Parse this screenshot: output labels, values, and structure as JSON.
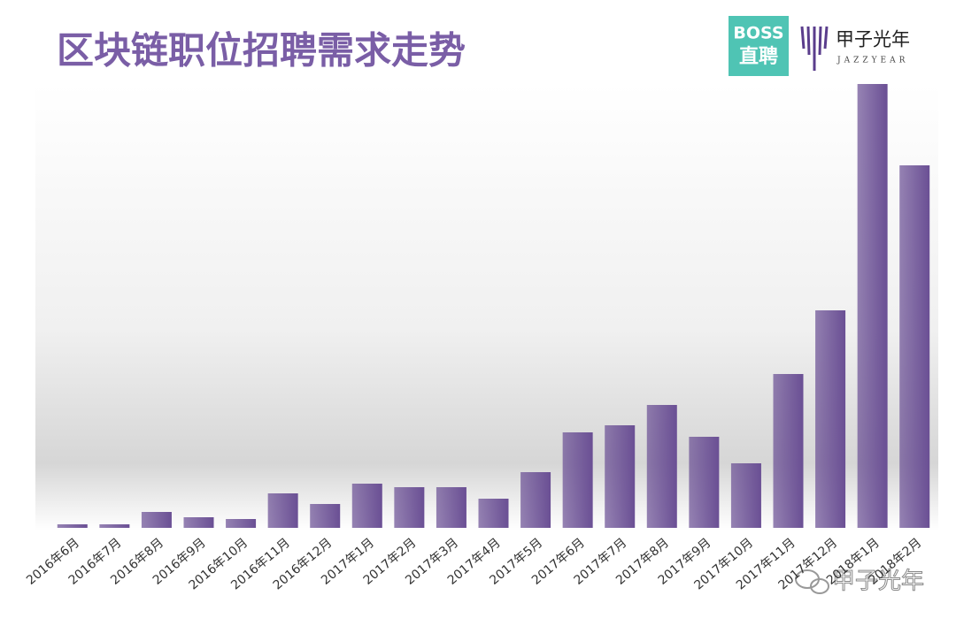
{
  "title": "区块链职位招聘需求走势",
  "logos": {
    "boss_top": "BOSS",
    "boss_bottom": "直聘",
    "jazzyear_cn": "甲子光年",
    "jazzyear_en": "JAZZYEAR"
  },
  "watermark": "甲子光年",
  "chart_data": {
    "type": "bar",
    "categories": [
      "2016年6月",
      "2016年7月",
      "2016年8月",
      "2016年9月",
      "2016年10月",
      "2016年11月",
      "2016年12月",
      "2017年1月",
      "2017年2月",
      "2017年3月",
      "2017年4月",
      "2017年5月",
      "2017年6月",
      "2017年7月",
      "2017年8月",
      "2017年9月",
      "2017年10月",
      "2017年11月",
      "2017年12月",
      "2018年1月",
      "2018年2月"
    ],
    "values": [
      4,
      4,
      18,
      12,
      10,
      39,
      27,
      50,
      46,
      46,
      33,
      63,
      108,
      116,
      139,
      103,
      73,
      174,
      246,
      502,
      410
    ],
    "color": "#6a4f94"
  }
}
